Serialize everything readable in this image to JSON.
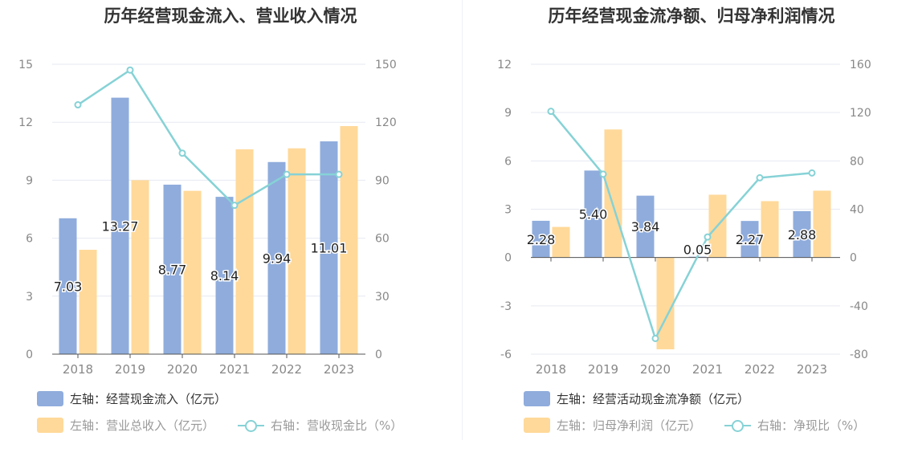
{
  "colors": {
    "bar_primary": "#8facdc",
    "bar_secondary": "#ffd99a",
    "line": "#86d2d6",
    "grid": "#e6e9f2",
    "axis_text": "#888888"
  },
  "chart_data": [
    {
      "type": "bar",
      "title": "历年经营现金流入、营业收入情况",
      "categories": [
        "2018",
        "2019",
        "2020",
        "2021",
        "2022",
        "2023"
      ],
      "ylim": [
        0,
        15
      ],
      "y_ticks": [
        "0",
        "3",
        "6",
        "9",
        "12",
        "15"
      ],
      "y2lim": [
        0,
        150
      ],
      "y2_ticks": [
        "0",
        "30",
        "60",
        "90",
        "120",
        "150"
      ],
      "grid": true,
      "legend_position": "bottom-left",
      "series": [
        {
          "name": "左轴：经营现金流入（亿元）",
          "type": "bar",
          "axis": "left",
          "values": [
            7.03,
            13.27,
            8.77,
            8.14,
            9.94,
            11.01
          ],
          "labels": [
            "7.03",
            "13.27",
            "8.77",
            "8.14",
            "9.94",
            "11.01"
          ]
        },
        {
          "name": "左轴：营业总收入（亿元）",
          "type": "bar",
          "axis": "left",
          "values": [
            5.4,
            9.0,
            8.45,
            10.6,
            10.65,
            11.8
          ]
        },
        {
          "name": "右轴：营收现金比（%）",
          "type": "line",
          "axis": "right",
          "values": [
            129,
            147,
            104,
            77,
            93,
            93
          ]
        }
      ]
    },
    {
      "type": "bar",
      "title": "历年经营现金流净额、归母净利润情况",
      "categories": [
        "2018",
        "2019",
        "2020",
        "2021",
        "2022",
        "2023"
      ],
      "ylim": [
        -6,
        12
      ],
      "y_ticks": [
        "-6",
        "-3",
        "0",
        "3",
        "6",
        "9",
        "12"
      ],
      "y2lim": [
        -80,
        160
      ],
      "y2_ticks": [
        "-80",
        "-40",
        "0",
        "40",
        "80",
        "120",
        "160"
      ],
      "grid": true,
      "legend_position": "bottom-left",
      "series": [
        {
          "name": "左轴：经营活动现金流净额（亿元）",
          "type": "bar",
          "axis": "left",
          "values": [
            2.28,
            5.4,
            3.84,
            0.05,
            2.27,
            2.88
          ],
          "labels": [
            "2.28",
            "5.40",
            "3.84",
            "0.05",
            "2.27",
            "2.88"
          ]
        },
        {
          "name": "左轴：归母净利润（亿元）",
          "type": "bar",
          "axis": "left",
          "values": [
            1.9,
            7.95,
            -5.7,
            3.9,
            3.5,
            4.15
          ]
        },
        {
          "name": "右轴：净现比（%）",
          "type": "line",
          "axis": "right",
          "values": [
            121,
            69,
            -67,
            17,
            66,
            70
          ]
        }
      ]
    }
  ]
}
